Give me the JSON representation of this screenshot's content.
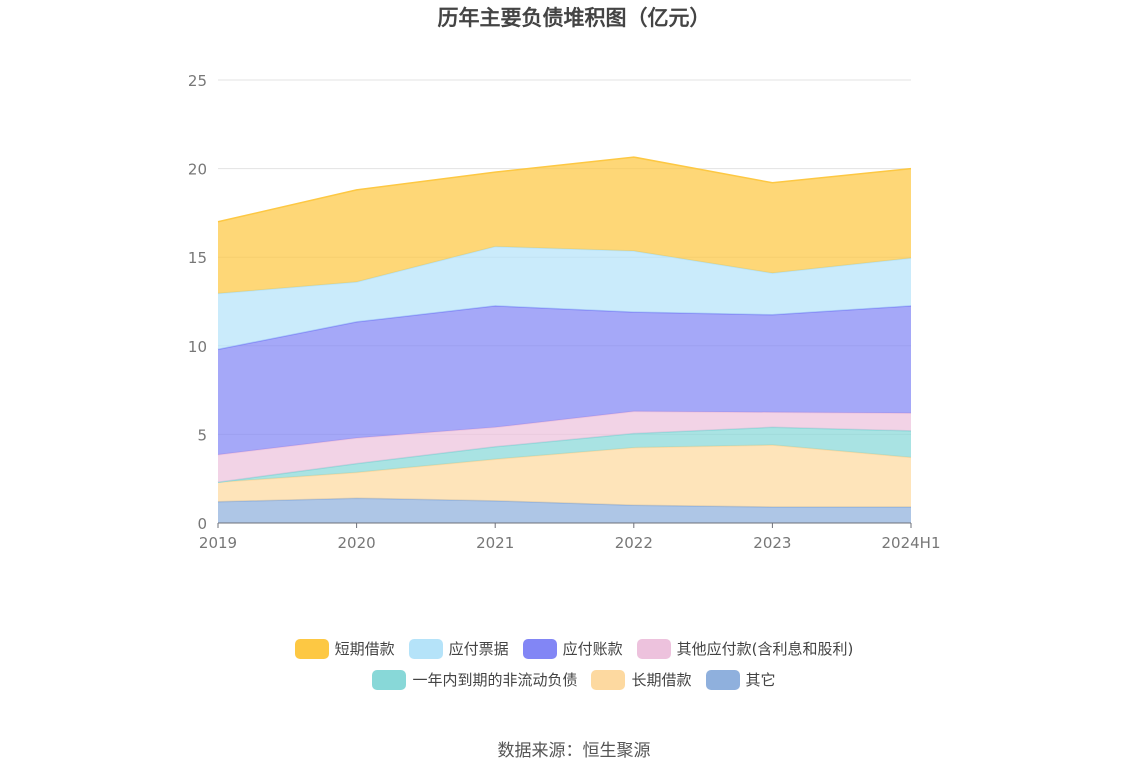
{
  "title": "历年主要负债堆积图（亿元）",
  "source": "数据来源：恒生聚源",
  "chart_data": {
    "type": "area",
    "stacked": true,
    "categories": [
      "2019",
      "2020",
      "2021",
      "2022",
      "2023",
      "2024H1"
    ],
    "ylim": [
      0,
      25
    ],
    "yticks": [
      0,
      5,
      10,
      15,
      20,
      25
    ],
    "grid": true,
    "legend_position": "bottom",
    "series": [
      {
        "name": "其它",
        "color": "#8fb0dd",
        "values": [
          1.2,
          1.4,
          1.25,
          1.0,
          0.9,
          0.9
        ]
      },
      {
        "name": "长期借款",
        "color": "#fdd9a0",
        "values": [
          1.1,
          1.45,
          2.35,
          3.25,
          3.5,
          2.8
        ]
      },
      {
        "name": "一年内到期的非流动负债",
        "color": "#88d8d8",
        "values": [
          0.0,
          0.5,
          0.7,
          0.8,
          1.0,
          1.5
        ]
      },
      {
        "name": "其他应付款(含利息和股利)",
        "color": "#edc2dd",
        "values": [
          1.55,
          1.45,
          1.1,
          1.25,
          0.85,
          1.0
        ]
      },
      {
        "name": "应付账款",
        "color": "#8286f5",
        "values": [
          5.95,
          6.55,
          6.85,
          5.6,
          5.5,
          6.05
        ]
      },
      {
        "name": "应付票据",
        "color": "#b5e3f9",
        "values": [
          3.15,
          2.25,
          3.35,
          3.45,
          2.35,
          2.7
        ]
      },
      {
        "name": "短期借款",
        "color": "#fdc843",
        "values": [
          4.05,
          5.2,
          4.2,
          5.3,
          5.1,
          5.05
        ]
      }
    ]
  },
  "legend": {
    "row1": [
      "短期借款",
      "应付票据",
      "应付账款",
      "其他应付款(含利息和股利)"
    ],
    "row2": [
      "一年内到期的非流动负债",
      "长期借款",
      "其它"
    ]
  }
}
